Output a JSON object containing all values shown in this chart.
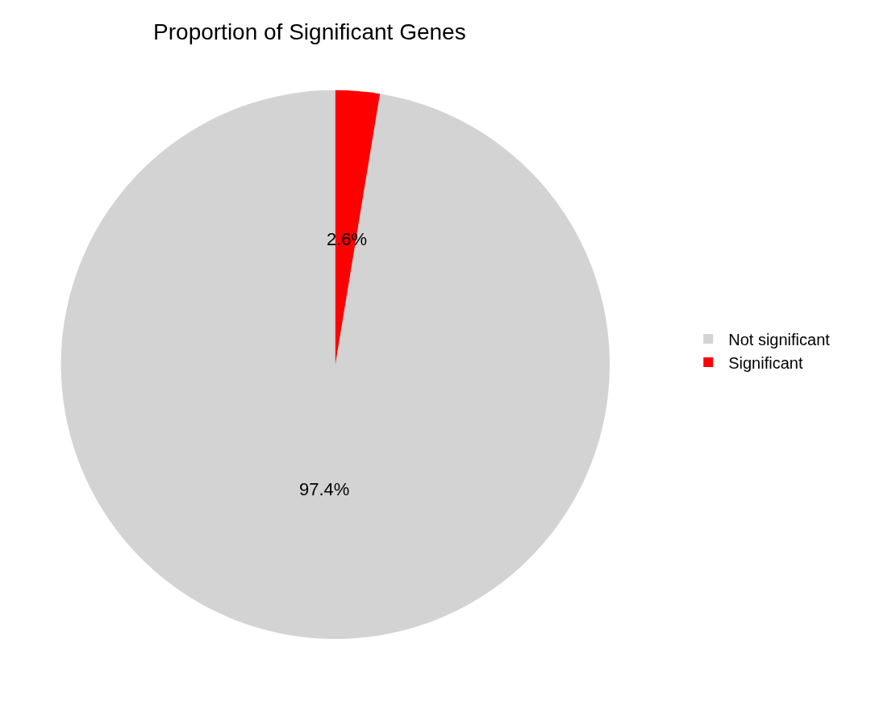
{
  "chart_data": {
    "type": "pie",
    "title": "Proportion of Significant Genes",
    "categories": [
      "Not significant",
      "Significant"
    ],
    "values": [
      97.4,
      2.6
    ],
    "colors": [
      "#d3d3d3",
      "#ff0000"
    ],
    "value_labels": [
      "97.4%",
      "2.6%"
    ],
    "legend": "right"
  }
}
